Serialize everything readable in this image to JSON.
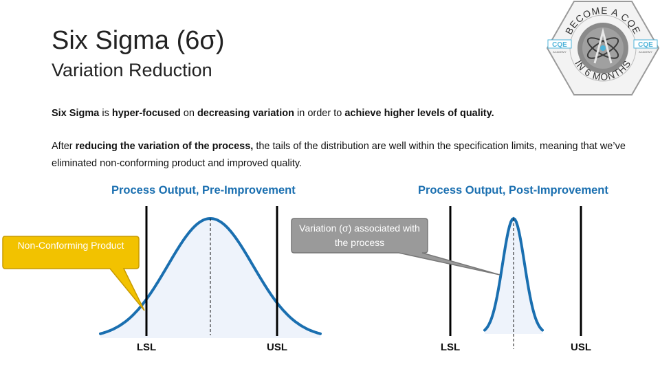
{
  "header": {
    "title": "Six Sigma (6σ)",
    "subtitle": "Variation Reduction"
  },
  "body": {
    "p1": [
      {
        "text": "Six Sigma",
        "bold": true
      },
      {
        "text": " is ",
        "bold": false
      },
      {
        "text": "hyper-focused",
        "bold": true
      },
      {
        "text": " on ",
        "bold": false
      },
      {
        "text": "decreasing variation",
        "bold": true
      },
      {
        "text": " in order to ",
        "bold": false
      },
      {
        "text": "achieve higher levels of quality.",
        "bold": true
      }
    ],
    "p2": [
      {
        "text": "After ",
        "bold": false
      },
      {
        "text": "reducing the variation of the process,",
        "bold": true
      },
      {
        "text": " the tails of the distribution are well within the specification limits, meaning that we’ve eliminated non-conforming product and improved quality.",
        "bold": false
      }
    ]
  },
  "charts": {
    "pre_title": "Process Output, Pre-Improvement",
    "post_title": "Process Output, Post-Improvement",
    "lsl": "LSL",
    "usl": "USL"
  },
  "callouts": {
    "nonconforming": "Non-Conforming Product",
    "variation": "Variation (σ) associated with the process"
  },
  "badge": {
    "top_text": "BECOME A CQE",
    "bottom_text": "IN 6 MONTHS",
    "left_logo": "CQE",
    "right_logo": "CQE",
    "logo_sub": "ACADEMY"
  },
  "colors": {
    "curve": "#1a6fb0",
    "curve_fill": "#eef3fb",
    "title_blue": "#1a6fb0",
    "callout_yellow": "#f2c200",
    "callout_gray": "#9a9a9a"
  },
  "chart_data": [
    {
      "type": "area",
      "title": "Process Output, Pre-Improvement",
      "distribution": "normal",
      "spec_limits": [
        "LSL",
        "USL"
      ],
      "tails_beyond_spec": true,
      "annotation": "Non-Conforming Product"
    },
    {
      "type": "area",
      "title": "Process Output, Post-Improvement",
      "distribution": "normal",
      "spec_limits": [
        "LSL",
        "USL"
      ],
      "tails_beyond_spec": false,
      "annotation": "Variation (σ) associated with the process"
    }
  ]
}
